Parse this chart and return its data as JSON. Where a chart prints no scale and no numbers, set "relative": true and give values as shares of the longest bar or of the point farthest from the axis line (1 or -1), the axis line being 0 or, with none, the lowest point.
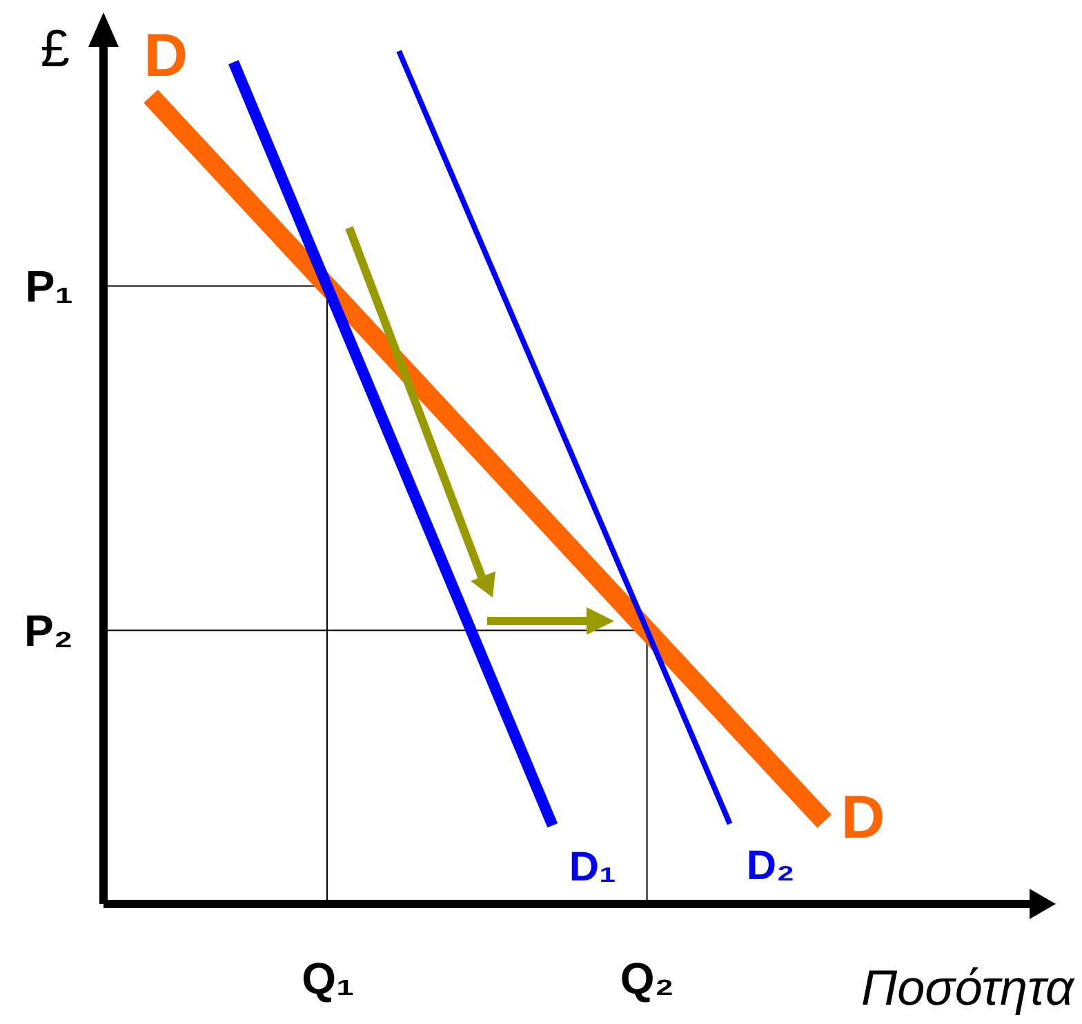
{
  "chart_data": {
    "type": "line",
    "relative": true,
    "xlabel": "Ποσότητα",
    "ylabel": "£",
    "categories": [
      null,
      null,
      null,
      null,
      null,
      null,
      null,
      null,
      null,
      null,
      null,
      null,
      null,
      null,
      null,
      null,
      null,
      null,
      null,
      "Q₁",
      null,
      null,
      null,
      null,
      null,
      null,
      null,
      null,
      null,
      null,
      null,
      null,
      null,
      null,
      null,
      null,
      null,
      null,
      null,
      null,
      null,
      null,
      null,
      null,
      null,
      null,
      "Q₂",
      null,
      null,
      null,
      null,
      null,
      null,
      null,
      null,
      null,
      null,
      null,
      null,
      null,
      null,
      null,
      null,
      null,
      null,
      null,
      null,
      null,
      null,
      null,
      null,
      null,
      null,
      null,
      null,
      null,
      null,
      null,
      null,
      null,
      null
    ],
    "series": [
      {
        "name": "D",
        "color": "#ff6600",
        "values": [
          null,
          null,
          null,
          null,
          0.947,
          null,
          null,
          null,
          null,
          null,
          null,
          null,
          null,
          null,
          null,
          null,
          null,
          null,
          null,
          null,
          null,
          null,
          null,
          null,
          null,
          null,
          null,
          null,
          null,
          null,
          null,
          null,
          null,
          null,
          null,
          null,
          null,
          null,
          null,
          null,
          null,
          null,
          null,
          null,
          null,
          null,
          null,
          null,
          null,
          null,
          null,
          null,
          null,
          null,
          null,
          null,
          null,
          null,
          null,
          null,
          null,
          0.097,
          null,
          null,
          null,
          null,
          null,
          null,
          null,
          null,
          null,
          null,
          null,
          null,
          null,
          null,
          null,
          null,
          null,
          null,
          null
        ]
      },
      {
        "name": "D₁",
        "color": "#0000ff",
        "values": [
          null,
          null,
          null,
          null,
          null,
          null,
          null,
          null,
          null,
          null,
          null,
          0.987,
          null,
          null,
          null,
          null,
          null,
          null,
          null,
          null,
          null,
          null,
          null,
          null,
          null,
          null,
          null,
          null,
          null,
          null,
          null,
          null,
          null,
          null,
          null,
          null,
          null,
          null,
          0.092,
          null,
          null,
          null,
          null,
          null,
          null,
          null,
          null,
          null,
          null,
          null,
          null,
          null,
          null,
          null,
          null,
          null,
          null,
          null,
          null,
          null,
          null,
          null,
          null,
          null,
          null,
          null,
          null,
          null,
          null,
          null,
          null,
          null,
          null,
          null,
          null,
          null,
          null,
          null,
          null,
          null,
          null
        ]
      },
      {
        "name": "D₂",
        "color": "#0000ff",
        "values": [
          null,
          null,
          null,
          null,
          null,
          null,
          null,
          null,
          null,
          null,
          null,
          null,
          null,
          null,
          null,
          null,
          null,
          null,
          null,
          null,
          null,
          null,
          null,
          null,
          null,
          1.0,
          null,
          null,
          null,
          null,
          null,
          null,
          null,
          null,
          null,
          null,
          null,
          null,
          null,
          null,
          null,
          null,
          null,
          null,
          null,
          null,
          null,
          null,
          null,
          null,
          null,
          null,
          null,
          0.094,
          null,
          null,
          null,
          null,
          null,
          null,
          null,
          null,
          null,
          null,
          null,
          null,
          null,
          null,
          null,
          null,
          null,
          null,
          null,
          null,
          null,
          null,
          null,
          null,
          null,
          null,
          null
        ]
      }
    ],
    "annotations": [
      "P₁",
      "P₂"
    ]
  }
}
